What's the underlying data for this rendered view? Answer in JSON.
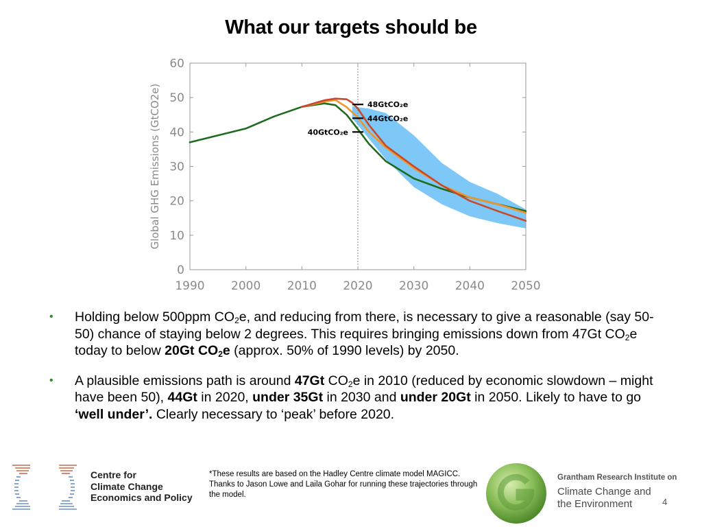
{
  "title": "What our targets should be",
  "chart_data": {
    "type": "line",
    "ylabel": "Global GHG Emissions (GtCO2e)",
    "xlabel": "",
    "xlim": [
      1990,
      2050
    ],
    "ylim": [
      0,
      60
    ],
    "xticks": [
      1990,
      2000,
      2010,
      2020,
      2030,
      2040,
      2050
    ],
    "yticks": [
      0,
      10,
      20,
      30,
      40,
      50,
      60
    ],
    "vline": 2020,
    "colors": {
      "band": "#7ec8f8",
      "green": "#1e6b1e",
      "orange": "#f0952d",
      "red": "#c8482a",
      "axis": "#999999"
    },
    "band": {
      "x": [
        2019,
        2020,
        2022,
        2025,
        2030,
        2035,
        2040,
        2045,
        2050
      ],
      "upper": [
        47.5,
        47.2,
        46.8,
        45.5,
        39,
        31,
        25.5,
        22,
        17.5
      ],
      "lower": [
        44,
        42,
        38,
        32,
        24,
        19,
        15.5,
        13.5,
        12
      ]
    },
    "series": [
      {
        "key": "green",
        "x": [
          1990,
          2000,
          2005,
          2010,
          2014,
          2016,
          2018,
          2020,
          2022,
          2025,
          2030,
          2035,
          2040,
          2045,
          2050
        ],
        "y": [
          37,
          41,
          44.5,
          47.3,
          48.3,
          47.8,
          45,
          40.8,
          36.5,
          31.5,
          26.5,
          23.5,
          21,
          19,
          17
        ]
      },
      {
        "key": "orange",
        "x": [
          2010,
          2014,
          2016,
          2018,
          2020,
          2022,
          2025,
          2030,
          2035,
          2040,
          2045,
          2050
        ],
        "y": [
          47.3,
          48.8,
          49.3,
          47.2,
          44.2,
          40,
          35.5,
          29.5,
          24.5,
          21,
          19,
          16.5
        ]
      },
      {
        "key": "red",
        "x": [
          2010,
          2014,
          2016,
          2018,
          2019,
          2020,
          2022,
          2025,
          2030,
          2035,
          2040,
          2045,
          2050
        ],
        "y": [
          47.3,
          49.2,
          49.7,
          49.5,
          48.5,
          46.8,
          42,
          36,
          30,
          24.5,
          20,
          17,
          14.2
        ]
      }
    ],
    "annotations": [
      {
        "text": "48GtCO₂e",
        "value": 48,
        "side": "right"
      },
      {
        "text": "44GtCO₂e",
        "value": 44,
        "side": "right"
      },
      {
        "text": "40GtCO₂e",
        "value": 40,
        "side": "left"
      }
    ]
  },
  "bullets": {
    "b1": {
      "t1": "Holding below 500ppm CO",
      "s1": "2",
      "t2": "e, and reducing from there, is necessary to give a reasonable (say 50-50) chance of staying below 2 degrees. This requires bringing emissions down from 47Gt CO",
      "s2": "2",
      "t3": "e today to below ",
      "bold1": "20Gt CO",
      "bs1": "2",
      "bold2": "e",
      "t4": " (approx. 50% of 1990 levels) by 2050."
    },
    "b2": {
      "t1": "A plausible emissions path is around ",
      "bold1": "47Gt",
      "t2": " CO",
      "s1": "2",
      "t3": "e in 2010 (reduced by economic slowdown – might have been 50), ",
      "bold2": "44Gt",
      "t4": " in 2020, ",
      "bold3": "under 35Gt",
      "t5": " in 2030 and ",
      "bold4": "under 20Gt",
      "t6": " in 2050. Likely to have to go ",
      "bold5": "‘well under’.",
      "t7": " Clearly necessary to ‘peak’ before 2020."
    }
  },
  "footer": {
    "cccep": [
      "Centre for",
      "Climate Change",
      "Economics and Policy"
    ],
    "footnote": "*These results are based on the Hadley Centre climate model MAGICC. Thanks to Jason Lowe and Laila Gohar for running these trajectories through the model.",
    "grantham_line1": "Grantham Research Institute on",
    "grantham_line2": "Climate Change and",
    "grantham_line3": "the Environment",
    "page_number": "4"
  }
}
